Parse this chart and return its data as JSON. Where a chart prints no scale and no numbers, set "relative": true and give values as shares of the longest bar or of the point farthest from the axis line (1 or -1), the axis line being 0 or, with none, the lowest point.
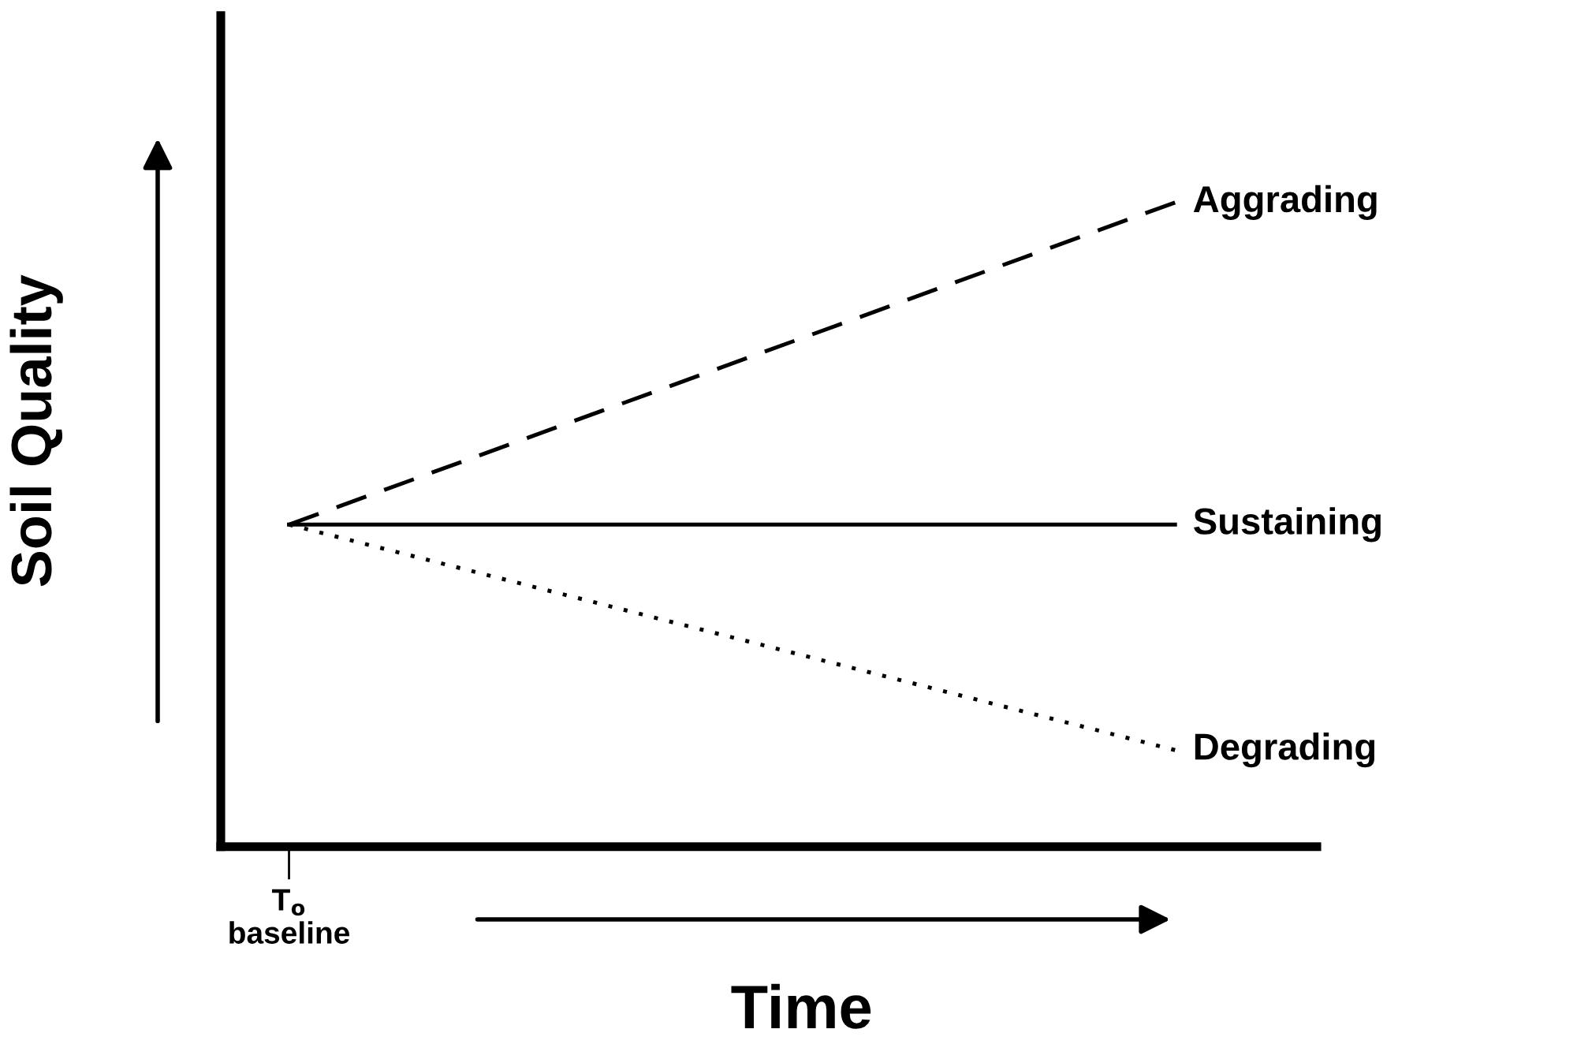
{
  "chart_data": {
    "type": "line",
    "relative": true,
    "xlabel": "Time",
    "ylabel": "Soil Quality",
    "categories": [
      null,
      null
    ],
    "annotations": [
      "T$_{o}$\nbaseline"
    ],
    "series": [
      {
        "name": "Aggrading",
        "color": "#000000",
        "line_style": "dashed",
        "values": [
          0.5,
          1
        ]
      },
      {
        "name": "Sustaining",
        "color": "#000000",
        "line_style": "solid",
        "values": [
          0.5,
          0.5
        ]
      },
      {
        "name": "Degrading",
        "color": "#000000",
        "line_style": "dotted",
        "values": [
          0.5,
          0.15
        ]
      }
    ],
    "marker": "none",
    "grid": false,
    "legend": false
  }
}
